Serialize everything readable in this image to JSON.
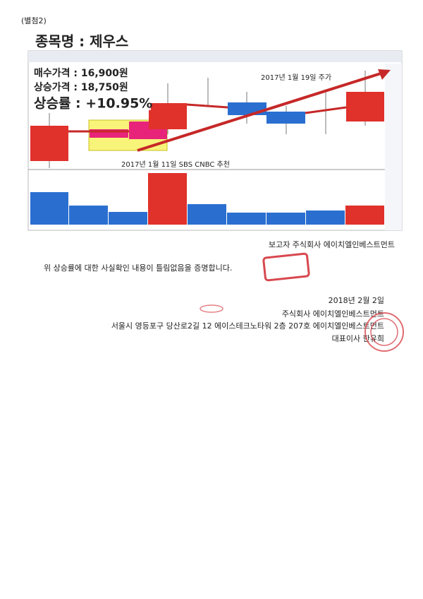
{
  "header": {
    "attachment": "(별첨2)"
  },
  "stock": {
    "name_line": "종목명 : 제우스",
    "buy_price": "매수가격 : 16,900원",
    "rise_price": "상승가격 : 18,750원",
    "rise_rate": "상승률 : +10.95%"
  },
  "chart_annotations": {
    "price_date": "2017년 1월 19일 주가",
    "recommendation": "2017년 1월 11일 SBS CNBC 추천"
  },
  "reporter": "보고자 주식회사 에이치엘인베스트먼트",
  "statement": "위 상승률에 대한 사실확인 내용이 틀림없음을 증명합니다.",
  "signature": {
    "date": "2018년 2월 2일",
    "company": "주식회사 에이치엘인베스트먼트",
    "address": "서울시 영등포구 당산로2길 12 에이스테크노타워 2층 207호 에이치엘인베스트먼트",
    "ceo": "대표이사 한유희"
  }
}
